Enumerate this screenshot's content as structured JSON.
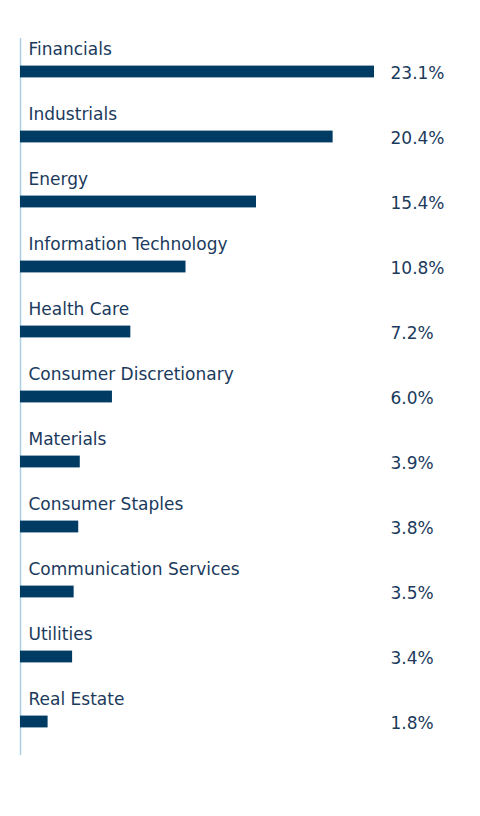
{
  "chart_data": {
    "type": "bar",
    "orientation": "horizontal",
    "categories": [
      "Financials",
      "Industrials",
      "Energy",
      "Information Technology",
      "Health Care",
      "Consumer Discretionary",
      "Materials",
      "Consumer Staples",
      "Communication Services",
      "Utilities",
      "Real Estate"
    ],
    "values": [
      23.1,
      20.4,
      15.4,
      10.8,
      7.2,
      6.0,
      3.9,
      3.8,
      3.5,
      3.4,
      1.8
    ],
    "value_labels": [
      "23.1%",
      "20.4%",
      "15.4%",
      "10.8%",
      "7.2%",
      "6.0%",
      "3.9%",
      "3.8%",
      "3.5%",
      "3.4%",
      "1.8%"
    ],
    "color": "#003b64",
    "xlim": [
      0,
      23.1
    ],
    "data_labels": true,
    "tick_labels": false,
    "grid": false
  }
}
